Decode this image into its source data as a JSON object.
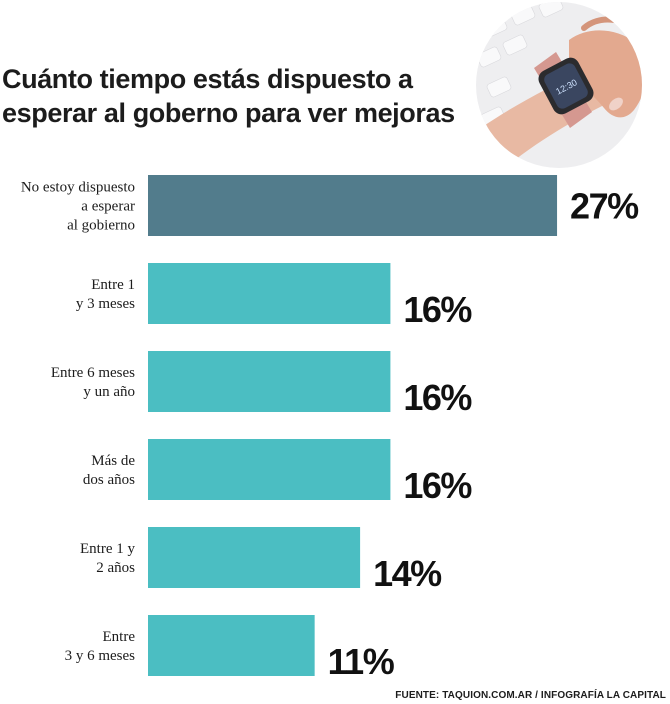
{
  "header": {
    "title_line1": "Cuánto tiempo estás dispuesto a",
    "title_line2": "esperar al goberno para  ver mejoras"
  },
  "photo": {
    "icon": "smartwatch-on-wrist-icon",
    "watch_time": "12:30"
  },
  "colors": {
    "highlight_bar": "#527c8c",
    "bar": "#4bbec2",
    "text": "#1c1c1c"
  },
  "chart_data": {
    "type": "bar",
    "orientation": "horizontal",
    "categories": [
      [
        "No estoy dispuesto",
        "a esperar",
        "al gobierno"
      ],
      [
        "Entre 1",
        "y 3 meses"
      ],
      [
        "Entre 6 meses",
        "y un año"
      ],
      [
        "Más de",
        "dos años"
      ],
      [
        "Entre 1 y",
        "2 años"
      ],
      [
        "Entre",
        "3 y 6 meses"
      ]
    ],
    "values": [
      27,
      16,
      16,
      16,
      14,
      11
    ],
    "value_labels": [
      "27%",
      "16%",
      "16%",
      "16%",
      "14%",
      "11%"
    ],
    "highlight_index": 0,
    "grid": false,
    "legend": "none"
  },
  "footer": {
    "source": "FUENTE: TAQUION.COM.AR / INFOGRAFÍA LA CAPITAL"
  }
}
